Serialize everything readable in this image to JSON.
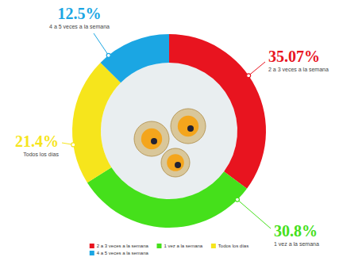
{
  "chart_data": {
    "type": "donut",
    "categories": [
      "2 a 3 veces a la semana",
      "1 vez a la semana",
      "Todos los días",
      "4 a 5 veces a la semana"
    ],
    "values": [
      35.07,
      30.8,
      21.4,
      12.5
    ],
    "value_labels": [
      "35.07%",
      "30.8%",
      "21.4%",
      "12.5%"
    ],
    "colors": [
      "#e8141f",
      "#45e01b",
      "#f6e51c",
      "#1ba6e3"
    ],
    "data_labels": true,
    "legend": "bottom"
  }
}
